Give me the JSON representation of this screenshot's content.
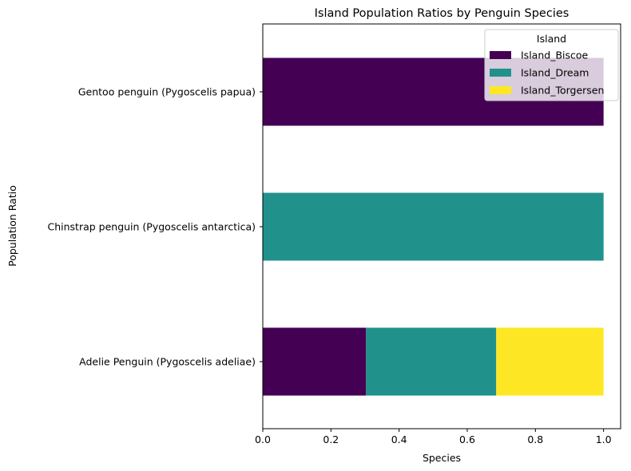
{
  "chart_data": {
    "type": "bar",
    "orientation": "horizontal",
    "stacked": true,
    "title": "Island Population Ratios by Penguin Species",
    "xlabel": "Species",
    "ylabel": "Population Ratio",
    "xlim": [
      0,
      1.05
    ],
    "xticks": [
      "0.0",
      "0.2",
      "0.4",
      "0.6",
      "0.8",
      "1.0"
    ],
    "categories": [
      "Adelie Penguin (Pygoscelis adeliae)",
      "Chinstrap penguin (Pygoscelis antarctica)",
      "Gentoo penguin (Pygoscelis papua)"
    ],
    "series": [
      {
        "name": "Island_Biscoe",
        "color": "#440154",
        "values": [
          0.303,
          0.0,
          1.0
        ]
      },
      {
        "name": "Island_Dream",
        "color": "#21918c",
        "values": [
          0.382,
          1.0,
          0.0
        ]
      },
      {
        "name": "Island_Torgersen",
        "color": "#fde725",
        "values": [
          0.315,
          0.0,
          0.0
        ]
      }
    ],
    "legend": {
      "title": "Island",
      "position": "top-right"
    },
    "grid": false
  }
}
